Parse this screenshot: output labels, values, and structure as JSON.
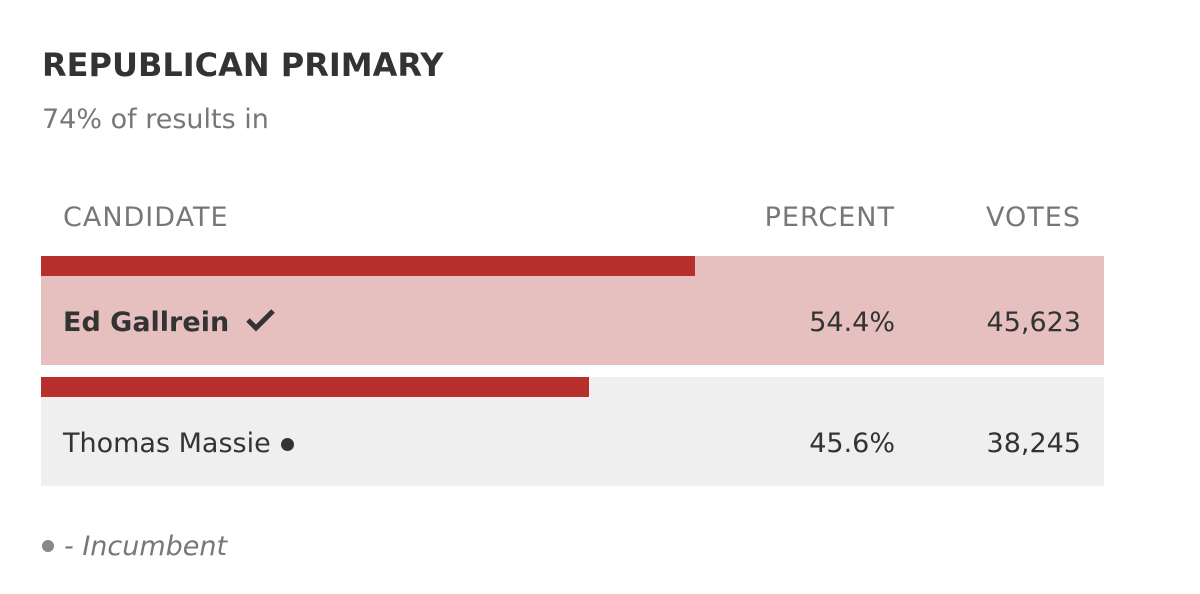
{
  "header": {
    "title": "REPUBLICAN PRIMARY",
    "subtitle": "74% of results in"
  },
  "table": {
    "columns": [
      "CANDIDATE",
      "PERCENT",
      "VOTES"
    ],
    "rows": [
      {
        "name": "Ed Gallrein",
        "percent": 54.4,
        "percent_label": "54.4%",
        "votes": "45,623",
        "winner": true,
        "incumbent": false
      },
      {
        "name": "Thomas Massie",
        "percent": 45.6,
        "percent_label": "45.6%",
        "votes": "38,245",
        "winner": false,
        "incumbent": true
      }
    ]
  },
  "footnote": "- Incumbent"
}
